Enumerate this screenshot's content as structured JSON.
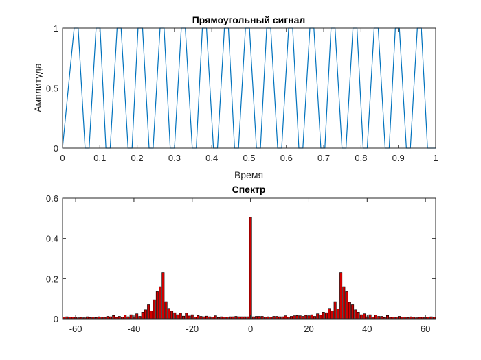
{
  "chart_data": [
    {
      "type": "line",
      "title": "Прямоугольный сигнал",
      "xlabel": "Время",
      "ylabel": "Амплитуда",
      "xlim": [
        0,
        1
      ],
      "ylim": [
        0,
        1
      ],
      "xticks": [
        "0",
        "0.1",
        "0.2",
        "0.3",
        "0.4",
        "0.5",
        "0.6",
        "0.7",
        "0.8",
        "0.9",
        "1"
      ],
      "yticks": [
        "0",
        "0.5",
        "1"
      ],
      "line_color": "#0072BD",
      "series": [
        {
          "x": [
            0,
            0.0311,
            0.0419,
            0.0605,
            0.0713,
            0.0899,
            0.1007,
            0.1163,
            0.1278,
            0.1462,
            0.157,
            0.1756,
            0.1864,
            0.2024,
            0.2145,
            0.232,
            0.2428,
            0.2614,
            0.2722,
            0.2886,
            0.3001,
            0.3183,
            0.3291,
            0.3477,
            0.3585,
            0.3748,
            0.3859,
            0.4045,
            0.4153,
            0.4339,
            0.4447,
            0.461,
            0.4717,
            0.4903,
            0.5011,
            0.5197,
            0.5305,
            0.5472,
            0.558,
            0.5766,
            0.5874,
            0.606,
            0.6168,
            0.6334,
            0.6442,
            0.6629,
            0.6737,
            0.6923,
            0.7031,
            0.7196,
            0.7304,
            0.749,
            0.7598,
            0.7784,
            0.7892,
            0.8058,
            0.8167,
            0.8353,
            0.8461,
            0.8647,
            0.8755,
            0.892,
            0.9029,
            0.9215,
            0.9323,
            0.9509,
            0.9617,
            0.9782,
            0.989,
            1.0
          ],
          "y": [
            0,
            1,
            1,
            0,
            0,
            1,
            1,
            0,
            0,
            1,
            1,
            0,
            0,
            1,
            1,
            0,
            0,
            1,
            1,
            0,
            0,
            1,
            1,
            0,
            0,
            1,
            1,
            0,
            0,
            1,
            1,
            0,
            0,
            1,
            1,
            0,
            0,
            1,
            1,
            0,
            0,
            1,
            1,
            0,
            0,
            1,
            1,
            0,
            0,
            1,
            1,
            0,
            0,
            1,
            1,
            0,
            0,
            1,
            1,
            0,
            0,
            1,
            1,
            0,
            0,
            1,
            1,
            0,
            0,
            0
          ]
        }
      ]
    },
    {
      "type": "bar",
      "title": "Спектр",
      "xlim": [
        -64,
        63
      ],
      "ylim": [
        0,
        0.6
      ],
      "xticks": [
        "-60",
        "-40",
        "-20",
        "0",
        "20",
        "40",
        "60"
      ],
      "yticks": [
        "0",
        "0.2",
        "0.4",
        "0.6"
      ],
      "bar_color": "#d00000",
      "edge_color": "#000000",
      "x": [
        -64,
        -63,
        -62,
        -61,
        -60,
        -59,
        -58,
        -57,
        -56,
        -55,
        -54,
        -53,
        -52,
        -51,
        -50,
        -49,
        -48,
        -47,
        -46,
        -45,
        -44,
        -43,
        -42,
        -41,
        -40,
        -39,
        -38,
        -37,
        -36,
        -35,
        -34,
        -33,
        -32,
        -31,
        -30,
        -29,
        -28,
        -27,
        -26,
        -25,
        -24,
        -23,
        -22,
        -21,
        -20,
        -19,
        -18,
        -17,
        -16,
        -15,
        -14,
        -13,
        -12,
        -11,
        -10,
        -9,
        -8,
        -7,
        -6,
        -5,
        -4,
        -3,
        -2,
        -1,
        0,
        1,
        2,
        3,
        4,
        5,
        6,
        7,
        8,
        9,
        10,
        11,
        12,
        13,
        14,
        15,
        16,
        17,
        18,
        19,
        20,
        21,
        22,
        23,
        24,
        25,
        26,
        27,
        28,
        29,
        30,
        31,
        32,
        33,
        34,
        35,
        36,
        37,
        38,
        39,
        40,
        41,
        42,
        43,
        44,
        45,
        46,
        47,
        48,
        49,
        50,
        51,
        52,
        53,
        54,
        55,
        56,
        57,
        58,
        59,
        60,
        61,
        62,
        63
      ],
      "values": [
        0.008,
        0.01,
        0.009,
        0.009,
        0.008,
        0.005,
        0.007,
        0.005,
        0.01,
        0.006,
        0.009,
        0.006,
        0.01,
        0.009,
        0.007,
        0.012,
        0.01,
        0.016,
        0.007,
        0.012,
        0.008,
        0.018,
        0.01,
        0.02,
        0.01,
        0.025,
        0.012,
        0.033,
        0.045,
        0.07,
        0.04,
        0.095,
        0.135,
        0.16,
        0.23,
        0.085,
        0.052,
        0.038,
        0.03,
        0.02,
        0.028,
        0.013,
        0.028,
        0.014,
        0.02,
        0.008,
        0.016,
        0.012,
        0.01,
        0.013,
        0.01,
        0.008,
        0.015,
        0.006,
        0.01,
        0.008,
        0.008,
        0.01,
        0.01,
        0.012,
        0.01,
        0.01,
        0.01,
        0.01,
        0.505,
        0.01,
        0.012,
        0.012,
        0.012,
        0.008,
        0.01,
        0.008,
        0.012,
        0.012,
        0.01,
        0.01,
        0.015,
        0.008,
        0.012,
        0.015,
        0.016,
        0.015,
        0.012,
        0.017,
        0.015,
        0.02,
        0.012,
        0.025,
        0.018,
        0.033,
        0.03,
        0.052,
        0.04,
        0.085,
        0.05,
        0.23,
        0.16,
        0.135,
        0.082,
        0.07,
        0.045,
        0.033,
        0.02,
        0.025,
        0.01,
        0.02,
        0.008,
        0.018,
        0.012,
        0.012,
        0.006,
        0.016,
        0.007,
        0.009,
        0.008,
        0.012,
        0.009,
        0.009,
        0.006,
        0.01,
        0.008,
        0.005,
        0.007,
        0.009,
        0.008,
        0.009,
        0.01,
        0.008
      ]
    }
  ]
}
